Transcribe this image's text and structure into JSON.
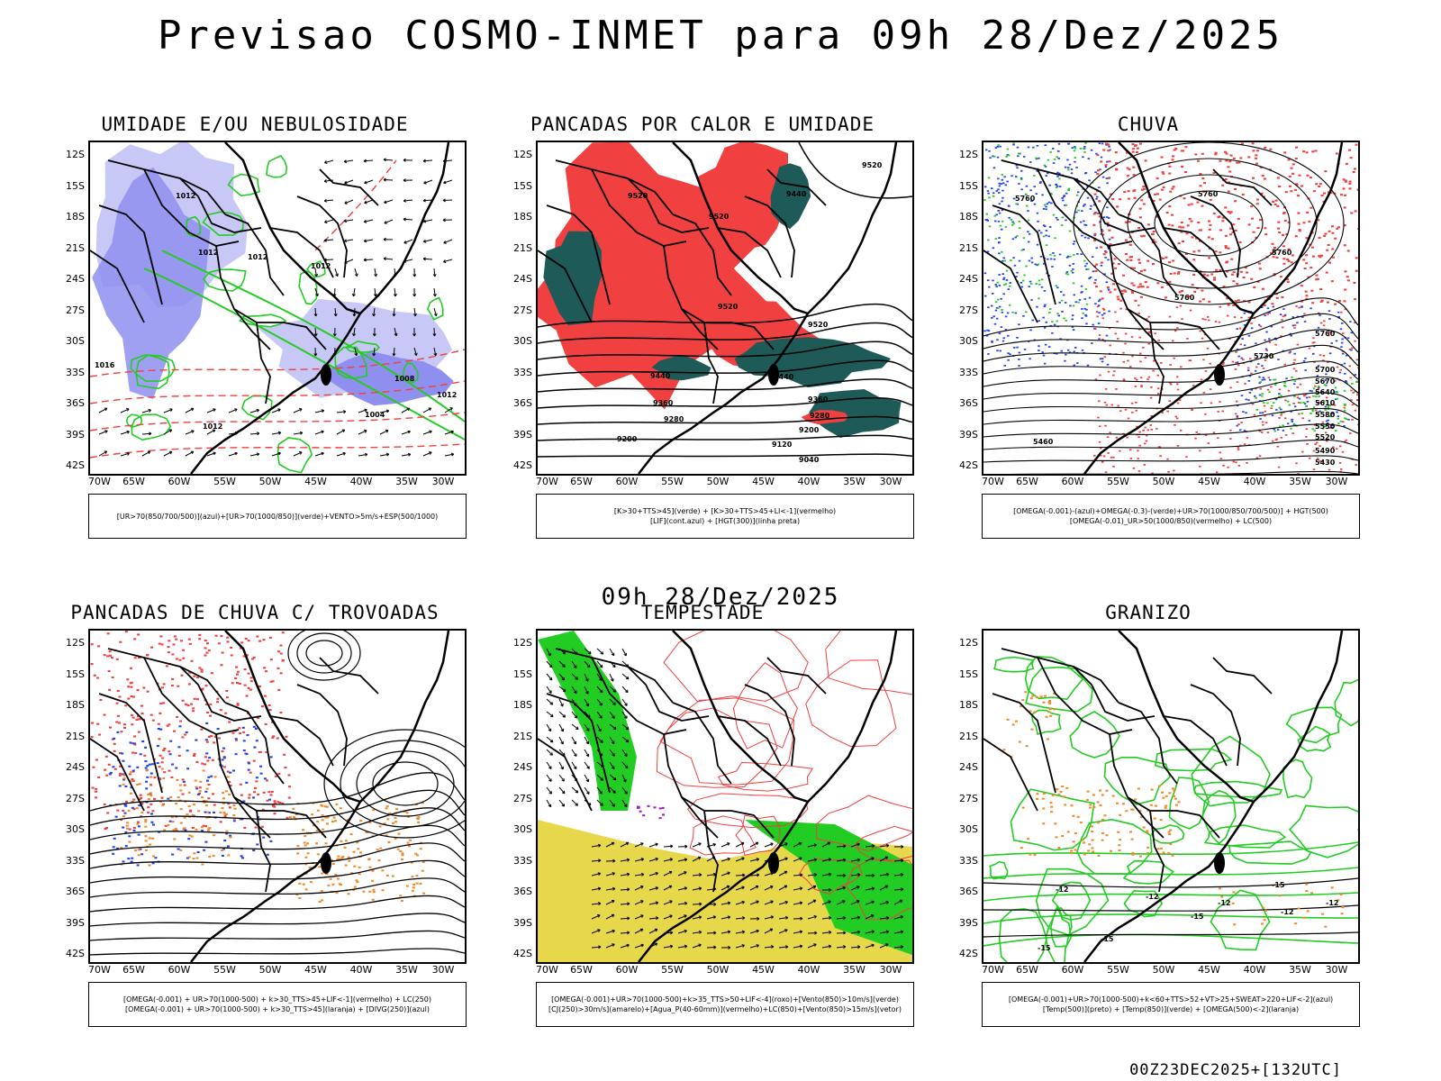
{
  "header": {
    "title": "Previsao COSMO-INMET  para 09h 28/Dez/2025"
  },
  "mid_label": "09h 28/Dez/2025",
  "footer": {
    "stamp": "00Z23DEC2025+[132UTC]"
  },
  "axes": {
    "lat_labels": [
      "12S",
      "15S",
      "18S",
      "21S",
      "24S",
      "27S",
      "30S",
      "33S",
      "36S",
      "39S",
      "42S"
    ],
    "lon_labels": [
      "70W",
      "65W",
      "60W",
      "55W",
      "50W",
      "45W",
      "40W",
      "35W",
      "30W"
    ]
  },
  "colors": {
    "blue_humidity": "#8f8ff0",
    "light_blue": "#c8c8f7",
    "green_contour": "#22cc22",
    "red": "#f04040",
    "dark_teal": "#1e5a58",
    "yellow": "#e6d84a",
    "orange": "#f08a2a",
    "blue_dot": "#2244ee"
  },
  "panels": [
    {
      "title": "UMIDADE E/OU NEBULOSIDADE",
      "legend_lines": [
        "[UR>70(850/700/500)](azul)+[UR>70(1000/850)](verde)+VENTO>5m/s+ESP(500/1000)"
      ],
      "contour_labels": [
        "1012",
        "1012",
        "1012",
        "1012",
        "1008",
        "1004",
        "1012",
        "1012",
        "1016"
      ]
    },
    {
      "title": "PANCADAS POR CALOR E UMIDADE",
      "legend_lines": [
        "[K>30+TTS>45](verde) + [K>30+TTS>45+LI<-1](vermelho)",
        "[LIF](cont.azul) + [HGT(300)](linha preta)"
      ],
      "contour_labels": [
        "9520",
        "9520",
        "9520",
        "9440",
        "9520",
        "9520",
        "9440",
        "9440",
        "9360",
        "9360",
        "9280",
        "9280",
        "9200",
        "9200",
        "9120",
        "9040"
      ]
    },
    {
      "title": "CHUVA",
      "legend_lines": [
        "[OMEGA(-0.001)-(azul)+OMEGA(-0.3)-(verde)+UR>70(1000/850/700/500)] + HGT(500)",
        "[OMEGA(-0.01)_UR>50(1000/850)(vermelho) + LC(500)"
      ],
      "contour_labels": [
        "5760",
        "5760",
        "5760",
        "5760",
        "5760",
        "5730",
        "5700",
        "5670",
        "5640",
        "5610",
        "5580",
        "5550",
        "5520",
        "5490",
        "5460",
        "5430"
      ]
    },
    {
      "title": "PANCADAS DE CHUVA C/ TROVOADAS",
      "legend_lines": [
        "[OMEGA(-0.001) + UR>70(1000-500) + k>30_TTS>45+LIF<-1](vermelho) + LC(250)",
        "[OMEGA(-0.001) + UR>70(1000-500) + k>30_TTS>45](laranja) + [DIVG(250)](azul)"
      ],
      "contour_labels": []
    },
    {
      "title": "TEMPESTADE",
      "legend_lines": [
        "[OMEGA(-0.001)+UR>70(1000-500)+k>35_TTS>50+LIF<-4](roxo)+[Vento(850)>10m/s](verde)",
        "[CJ(250)>30m/s](amarelo)+[Agua_P(40-60mm)](vermelho)+LC(850)+[Vento(850)>15m/s](vetor)"
      ],
      "contour_labels": []
    },
    {
      "title": "GRANIZO",
      "legend_lines": [
        "[OMEGA(-0.001)+UR>70(1000-500)+k<60+TTS>52+VT>25+SWEAT>220+LIF<-2](azul)",
        "[Temp(500)](preto) + [Temp(850)](verde) + [OMEGA(500)<-2](laranja)"
      ],
      "contour_labels": [
        "-12",
        "-12",
        "-12",
        "-12",
        "-12",
        "-15",
        "-15",
        "-15",
        "-15"
      ]
    }
  ]
}
